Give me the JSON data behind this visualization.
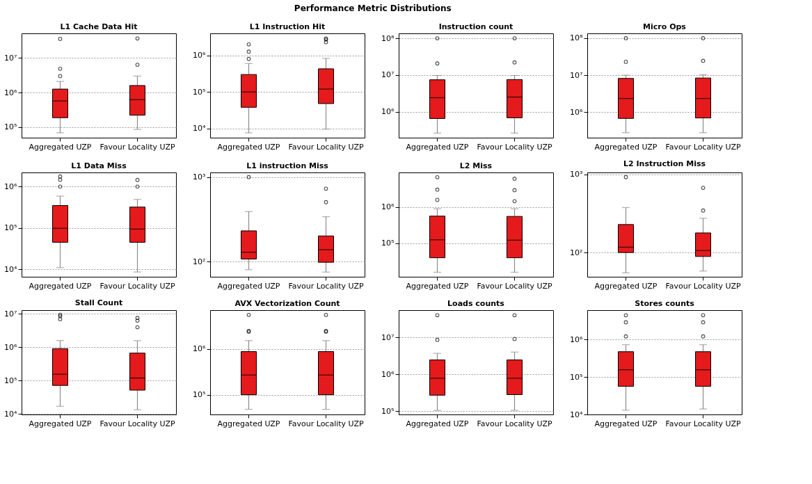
{
  "chart_data": [
    {
      "type": "box",
      "title": "L1 Cache Data Hit",
      "annotations": [
        "Performance Metric Distributions"
      ],
      "categories": [
        "Aggregated UZP",
        "Favour Locality UZP"
      ],
      "log": true,
      "grid": "y",
      "ylim": [
        49000,
        52000000
      ],
      "yticks": [
        {
          "value": 100000,
          "label": "10⁵"
        },
        {
          "value": 1000000,
          "label": "10⁶"
        },
        {
          "value": 10000000,
          "label": "10⁷"
        }
      ],
      "series": [
        {
          "color": "#e41a1c",
          "boxes": [
            {
              "low": 68000,
              "q1": 186000,
              "median": 570000,
              "q3": 1260000,
              "high": 2100000,
              "outliers": [
                3000000,
                4900000,
                36000000
              ]
            },
            {
              "low": 85000,
              "q1": 220000,
              "median": 620000,
              "q3": 1600000,
              "high": 3000000,
              "outliers": [
                6400000,
                37000000
              ]
            }
          ]
        }
      ]
    },
    {
      "type": "box",
      "title": "L1 Instruction Hit",
      "categories": [
        "Aggregated UZP",
        "Favour Locality UZP"
      ],
      "log": true,
      "grid": "y",
      "ylim": [
        5600,
        4000000
      ],
      "yticks": [
        {
          "value": 10000,
          "label": "10⁴"
        },
        {
          "value": 100000,
          "label": "10⁵"
        },
        {
          "value": 1000000,
          "label": "10⁶"
        }
      ],
      "series": [
        {
          "color": "#e41a1c",
          "boxes": [
            {
              "low": 7600,
              "q1": 38000,
              "median": 100000,
              "q3": 300000,
              "high": 600000,
              "outliers": [
                800000,
                1270000,
                2000000
              ]
            },
            {
              "low": 9600,
              "q1": 48000,
              "median": 120000,
              "q3": 430000,
              "high": 830000,
              "outliers": [
                2300000,
                2700000,
                2900000
              ]
            }
          ]
        }
      ]
    },
    {
      "type": "box",
      "title": "Instruction count",
      "categories": [
        "Aggregated UZP",
        "Favour Locality UZP"
      ],
      "log": true,
      "grid": "y",
      "ylim": [
        195000,
        136000000
      ],
      "yticks": [
        {
          "value": 1000000,
          "label": "10⁶"
        },
        {
          "value": 10000000,
          "label": "10⁷"
        },
        {
          "value": 100000000,
          "label": "10⁸"
        }
      ],
      "series": [
        {
          "color": "#e41a1c",
          "boxes": [
            {
              "low": 260000,
              "q1": 650000,
              "median": 2400000,
              "q3": 7400000,
              "high": 9700000,
              "outliers": [
                20600000,
                100000000
              ]
            },
            {
              "low": 260000,
              "q1": 680000,
              "median": 2500000,
              "q3": 7500000,
              "high": 9700000,
              "outliers": [
                22000000,
                100000000
              ]
            }
          ]
        }
      ]
    },
    {
      "type": "box",
      "title": "Micro Ops",
      "categories": [
        "Aggregated UZP",
        "Favour Locality UZP"
      ],
      "log": true,
      "grid": "y",
      "ylim": [
        205000,
        135000000
      ],
      "yticks": [
        {
          "value": 1000000,
          "label": "10⁶"
        },
        {
          "value": 10000000,
          "label": "10⁷"
        },
        {
          "value": 100000000,
          "label": "10⁸"
        }
      ],
      "series": [
        {
          "color": "#e41a1c",
          "boxes": [
            {
              "low": 280000,
              "q1": 680000,
              "median": 2350000,
              "q3": 8200000,
              "high": 10000000,
              "outliers": [
                23000000,
                100000000
              ]
            },
            {
              "low": 280000,
              "q1": 700000,
              "median": 2350000,
              "q3": 8400000,
              "high": 10300000,
              "outliers": [
                24500000,
                100000000
              ]
            }
          ]
        }
      ]
    },
    {
      "type": "box",
      "title": "L1 Data Miss",
      "categories": [
        "Aggregated UZP",
        "Favour Locality UZP"
      ],
      "log": true,
      "grid": "y",
      "ylim": [
        6600,
        2200000
      ],
      "yticks": [
        {
          "value": 10000,
          "label": "10⁴"
        },
        {
          "value": 100000,
          "label": "10⁵"
        },
        {
          "value": 1000000,
          "label": "10⁶"
        }
      ],
      "series": [
        {
          "color": "#e41a1c",
          "boxes": [
            {
              "low": 11000,
              "q1": 45000,
              "median": 98000,
              "q3": 350000,
              "high": 590000,
              "outliers": [
                1000000,
                1470000,
                1760000
              ]
            },
            {
              "low": 8600,
              "q1": 45000,
              "median": 94000,
              "q3": 320000,
              "high": 490000,
              "outliers": [
                1000000,
                1450000
              ]
            }
          ]
        }
      ]
    },
    {
      "type": "box",
      "title": "L1 instruction Miss",
      "categories": [
        "Aggregated UZP",
        "Favour Locality UZP"
      ],
      "log": true,
      "grid": "y",
      "ylim": [
        66,
        1136
      ],
      "yticks": [
        {
          "value": 100,
          "label": "10²"
        },
        {
          "value": 1000,
          "label": "10³"
        }
      ],
      "series": [
        {
          "color": "#e41a1c",
          "boxes": [
            {
              "low": 80,
              "q1": 107,
              "median": 129,
              "q3": 231,
              "high": 391,
              "outliers": [
                1000
              ]
            },
            {
              "low": 75,
              "q1": 98,
              "median": 138,
              "q3": 201,
              "high": 340,
              "outliers": [
                505,
                730
              ]
            }
          ]
        }
      ]
    },
    {
      "type": "box",
      "title": "L2 Miss",
      "categories": [
        "Aggregated UZP",
        "Favour Locality UZP"
      ],
      "log": true,
      "grid": "y",
      "ylim": [
        12000,
        8900000
      ],
      "yticks": [
        {
          "value": 100000,
          "label": "10⁵"
        },
        {
          "value": 1000000,
          "label": "10⁶"
        }
      ],
      "series": [
        {
          "color": "#e41a1c",
          "boxes": [
            {
              "low": 16000,
              "q1": 40000,
              "median": 125000,
              "q3": 560000,
              "high": 890000,
              "outliers": [
                1570000,
                3000000,
                6600000
              ]
            },
            {
              "low": 16000,
              "q1": 40000,
              "median": 122000,
              "q3": 550000,
              "high": 890000,
              "outliers": [
                1440000,
                2900000,
                6000000
              ]
            }
          ]
        }
      ]
    },
    {
      "type": "box",
      "title": "L2 Instruction Miss",
      "categories": [
        "Aggregated UZP",
        "Favour Locality UZP"
      ],
      "log": true,
      "grid": "y",
      "ylim": [
        49,
        1054
      ],
      "yticks": [
        {
          "value": 100,
          "label": "10²"
        },
        {
          "value": 1000,
          "label": "10³"
        }
      ],
      "series": [
        {
          "color": "#e41a1c",
          "boxes": [
            {
              "low": 55,
              "q1": 100,
              "median": 117,
              "q3": 228,
              "high": 375,
              "outliers": [
                918
              ]
            },
            {
              "low": 58,
              "q1": 89,
              "median": 106,
              "q3": 178,
              "high": 274,
              "outliers": [
                344,
                671
              ]
            }
          ]
        }
      ]
    },
    {
      "type": "box",
      "title": "Stall Count",
      "categories": [
        "Aggregated UZP",
        "Favour Locality UZP"
      ],
      "log": true,
      "grid": "y",
      "ylim": [
        9700,
        13000000
      ],
      "yticks": [
        {
          "value": 10000,
          "label": "10⁴"
        },
        {
          "value": 100000,
          "label": "10⁵"
        },
        {
          "value": 1000000,
          "label": "10⁶"
        },
        {
          "value": 10000000,
          "label": "10⁷"
        }
      ],
      "series": [
        {
          "color": "#e41a1c",
          "boxes": [
            {
              "low": 17000,
              "q1": 72000,
              "median": 156000,
              "q3": 910000,
              "high": 1600000,
              "outliers": [
                7000000,
                8600000,
                9500000
              ]
            },
            {
              "low": 13500,
              "q1": 52000,
              "median": 120000,
              "q3": 670000,
              "high": 1580000,
              "outliers": [
                4000000,
                6300000,
                7600000
              ]
            }
          ]
        }
      ]
    },
    {
      "type": "box",
      "title": "AVX Vectorization Count",
      "categories": [
        "Aggregated UZP",
        "Favour Locality UZP"
      ],
      "log": true,
      "grid": "y",
      "ylim": [
        37000,
        7100000
      ],
      "yticks": [
        {
          "value": 100000,
          "label": "10⁵"
        },
        {
          "value": 1000000,
          "label": "10⁶"
        }
      ],
      "series": [
        {
          "color": "#e41a1c",
          "boxes": [
            {
              "low": 48000,
              "q1": 100000,
              "median": 270000,
              "q3": 880000,
              "high": 1530000,
              "outliers": [
                2400000,
                2500000,
                5600000
              ]
            },
            {
              "low": 48000,
              "q1": 100000,
              "median": 270000,
              "q3": 880000,
              "high": 1530000,
              "outliers": [
                2400000,
                2500000,
                5600000
              ]
            }
          ]
        }
      ]
    },
    {
      "type": "box",
      "title": "Loads counts",
      "categories": [
        "Aggregated UZP",
        "Favour Locality UZP"
      ],
      "log": true,
      "grid": "y",
      "ylim": [
        81000,
        55000000
      ],
      "yticks": [
        {
          "value": 100000,
          "label": "10⁵"
        },
        {
          "value": 1000000,
          "label": "10⁶"
        },
        {
          "value": 10000000,
          "label": "10⁷"
        }
      ],
      "series": [
        {
          "color": "#e41a1c",
          "boxes": [
            {
              "low": 104000,
              "q1": 270000,
              "median": 780000,
              "q3": 2450000,
              "high": 3700000,
              "outliers": [
                8600000,
                40000000
              ]
            },
            {
              "low": 105000,
              "q1": 280000,
              "median": 780000,
              "q3": 2450000,
              "high": 4000000,
              "outliers": [
                9100000,
                40000000
              ]
            }
          ]
        }
      ]
    },
    {
      "type": "box",
      "title": "Stores counts",
      "categories": [
        "Aggregated UZP",
        "Favour Locality UZP"
      ],
      "log": true,
      "grid": "y",
      "ylim": [
        10000,
        6000000
      ],
      "yticks": [
        {
          "value": 10000,
          "label": "10⁴"
        },
        {
          "value": 100000,
          "label": "10⁵"
        },
        {
          "value": 1000000,
          "label": "10⁶"
        }
      ],
      "series": [
        {
          "color": "#e41a1c",
          "boxes": [
            {
              "low": 13000,
              "q1": 56000,
              "median": 155000,
              "q3": 470000,
              "high": 720000,
              "outliers": [
                1200000,
                2850000,
                4400000
              ]
            },
            {
              "low": 14000,
              "q1": 56000,
              "median": 155000,
              "q3": 470000,
              "high": 720000,
              "outliers": [
                1200000,
                2850000,
                4400000
              ]
            }
          ]
        }
      ]
    }
  ]
}
